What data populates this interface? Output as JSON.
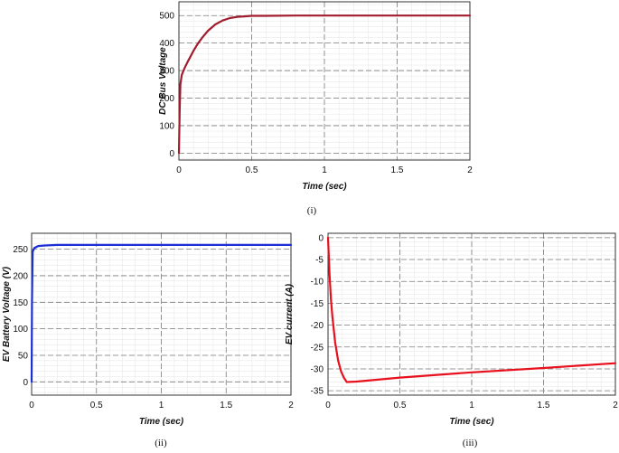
{
  "chart_data": [
    {
      "id": "i",
      "type": "line",
      "caption": "(i)",
      "xlabel": "Time (sec)",
      "ylabel": "DC Bus Voltage",
      "xlim": [
        0,
        2
      ],
      "ylim": [
        -25,
        550
      ],
      "xticks": [
        0,
        0.5,
        1,
        1.5,
        2
      ],
      "xtick_labels": [
        "0",
        "0.5",
        "1",
        "1.5",
        "2"
      ],
      "yticks": [
        0,
        100,
        200,
        300,
        400,
        500
      ],
      "ytick_labels": [
        "0",
        "100",
        "200",
        "300",
        "400",
        "500"
      ],
      "grid": true,
      "series": [
        {
          "color": "#a01c2e",
          "x": [
            0,
            0.005,
            0.01,
            0.02,
            0.04,
            0.06,
            0.08,
            0.1,
            0.13,
            0.16,
            0.2,
            0.25,
            0.3,
            0.35,
            0.4,
            0.45,
            0.5,
            0.6,
            0.8,
            1.0,
            1.5,
            2.0
          ],
          "y": [
            0,
            150,
            250,
            285,
            310,
            332,
            352,
            372,
            398,
            420,
            445,
            468,
            482,
            491,
            495,
            497,
            499,
            499,
            500,
            500,
            500,
            500
          ]
        }
      ]
    },
    {
      "id": "ii",
      "type": "line",
      "caption": "(ii)",
      "xlabel": "Time (sec)",
      "ylabel": "EV Battery Voltage (V)",
      "xlim": [
        0,
        2
      ],
      "ylim": [
        -25,
        280
      ],
      "xticks": [
        0,
        0.5,
        1,
        1.5,
        2
      ],
      "xtick_labels": [
        "0",
        "0.5",
        "1",
        "1.5",
        "2"
      ],
      "yticks": [
        0,
        50,
        100,
        150,
        200,
        250
      ],
      "ytick_labels": [
        "0",
        "50",
        "100",
        "150",
        "200",
        "250"
      ],
      "grid": true,
      "series": [
        {
          "color": "#1c2fd6",
          "x": [
            0,
            0.003,
            0.008,
            0.02,
            0.05,
            0.1,
            0.2,
            0.5,
            1.0,
            1.5,
            2.0
          ],
          "y": [
            0,
            150,
            245,
            252,
            256,
            257,
            258,
            258,
            258,
            258,
            258
          ]
        }
      ]
    },
    {
      "id": "iii",
      "type": "line",
      "caption": "(iii)",
      "xlabel": "Time (sec)",
      "ylabel": "EV current (A)",
      "xlim": [
        0,
        2
      ],
      "ylim": [
        -36,
        1
      ],
      "xticks": [
        0,
        0.5,
        1,
        1.5,
        2
      ],
      "xtick_labels": [
        "0",
        "0.5",
        "1",
        "1.5",
        "2"
      ],
      "yticks": [
        0,
        -5,
        -10,
        -15,
        -20,
        -25,
        -30,
        -35
      ],
      "ytick_labels": [
        "0",
        "-5",
        "-10",
        "-15",
        "-20",
        "-25",
        "-30",
        "-35"
      ],
      "grid": true,
      "series": [
        {
          "color": "#e8101c",
          "x": [
            0,
            0.01,
            0.02,
            0.03,
            0.05,
            0.07,
            0.09,
            0.11,
            0.13,
            0.2,
            0.5,
            1.0,
            1.5,
            2.0
          ],
          "y": [
            0,
            -8,
            -14,
            -18,
            -24,
            -28,
            -30.5,
            -32,
            -33,
            -32.9,
            -32,
            -30.8,
            -29.8,
            -28.7
          ]
        }
      ]
    }
  ]
}
